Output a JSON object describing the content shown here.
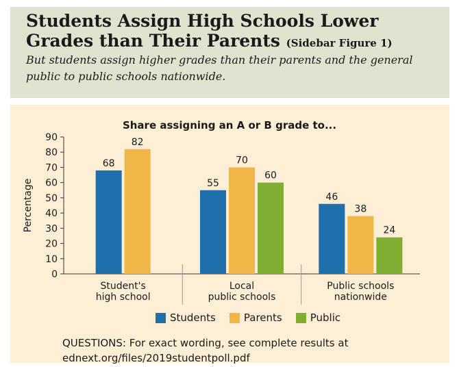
{
  "header": {
    "title_main": "Students Assign High Schools Lower Grades than Their Parents",
    "title_note": "(Sidebar Figure 1)",
    "subtitle": "But students assign higher grades than their parents and the general public to public schools nationwide."
  },
  "chart_data": {
    "type": "bar",
    "title": "Share assigning an A or B grade to...",
    "ylabel": "Percentage",
    "xlabel": "",
    "ylim": [
      0,
      90
    ],
    "yticks": [
      0,
      10,
      20,
      30,
      40,
      50,
      60,
      70,
      80,
      90
    ],
    "categories": [
      [
        "Student's",
        "high school"
      ],
      [
        "Local",
        "public schools"
      ],
      [
        "Public schools",
        "nationwide"
      ]
    ],
    "series": [
      {
        "name": "Students",
        "color": "#1f6fad",
        "values": [
          68,
          55,
          46
        ]
      },
      {
        "name": "Parents",
        "color": "#f0b648",
        "values": [
          82,
          70,
          38
        ]
      },
      {
        "name": "Public",
        "color": "#7fae32",
        "values": [
          null,
          60,
          24
        ]
      }
    ],
    "grid": false,
    "legend_position": "bottom"
  },
  "footer": {
    "questions": "QUESTIONS: For exact wording, see complete results at ednext.org/files/2019studentpoll.pdf"
  }
}
